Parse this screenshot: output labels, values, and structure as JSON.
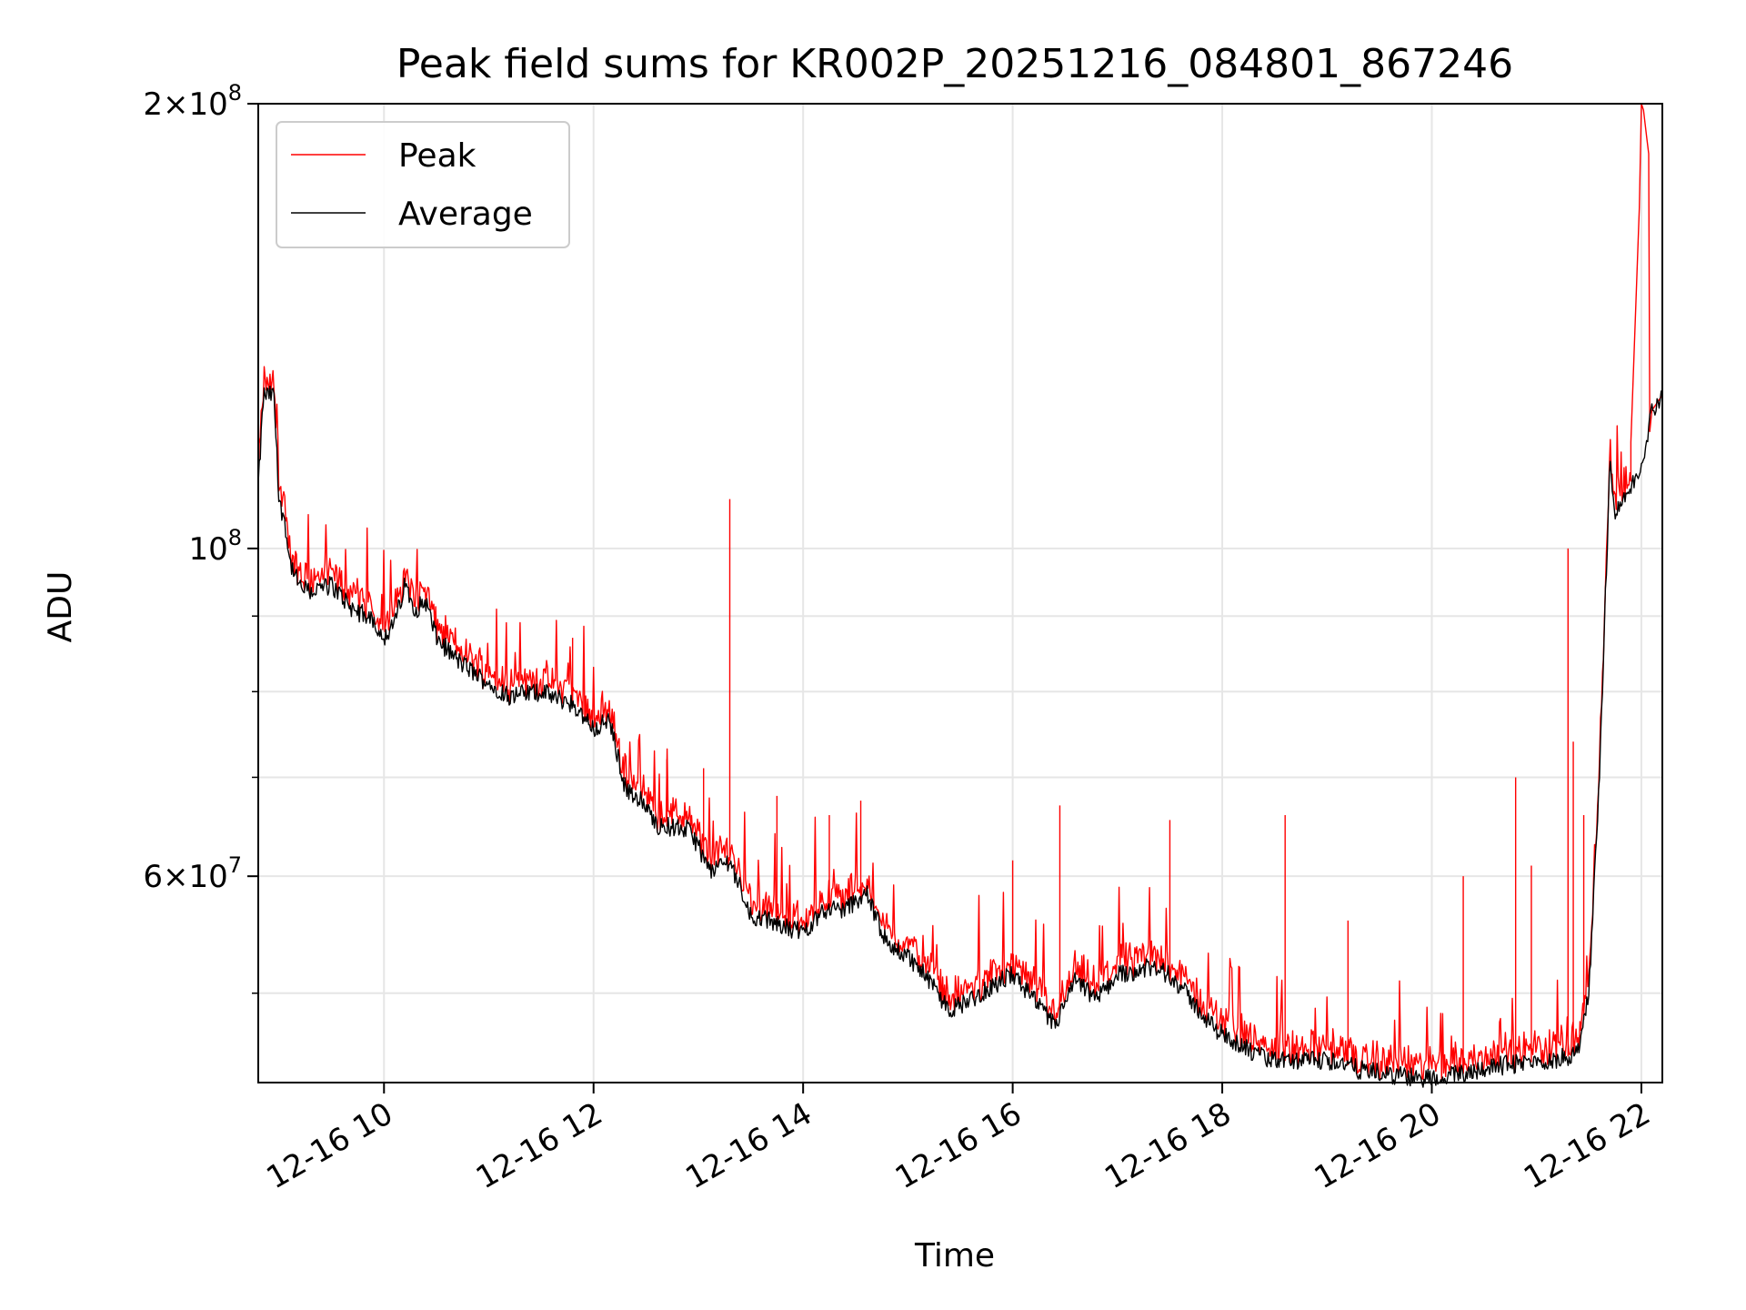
{
  "chart_data": {
    "type": "line",
    "title": "Peak field sums for KR002P_20251216_084801_867246",
    "xlabel": "Time",
    "ylabel": "ADU",
    "y_scale": "log",
    "xlim_hours": [
      8.8,
      22.2
    ],
    "ylim": [
      43500000,
      200000000
    ],
    "x_ticks": [
      {
        "value": 10,
        "label": "12-16 10"
      },
      {
        "value": 12,
        "label": "12-16 12"
      },
      {
        "value": 14,
        "label": "12-16 14"
      },
      {
        "value": 16,
        "label": "12-16 16"
      },
      {
        "value": 18,
        "label": "12-16 18"
      },
      {
        "value": 20,
        "label": "12-16 20"
      },
      {
        "value": 22,
        "label": "12-16 22"
      }
    ],
    "y_major_ticks": [
      {
        "value": 200000000,
        "base": "2×10",
        "exp": "8"
      },
      {
        "value": 100000000,
        "base": "10",
        "exp": "8"
      },
      {
        "value": 60000000,
        "base": "6×10",
        "exp": "7"
      }
    ],
    "y_minor_ticks": [
      50000000,
      70000000,
      80000000,
      90000000
    ],
    "grid": true,
    "legend": {
      "position": "top-left",
      "entries": [
        "Peak",
        "Average"
      ]
    },
    "series": [
      {
        "name": "Average",
        "color": "#000000",
        "x": [
          8.8,
          8.85,
          8.95,
          9.0,
          9.05,
          9.1,
          9.2,
          9.3,
          9.5,
          9.7,
          9.9,
          10.0,
          10.1,
          10.2,
          10.3,
          10.4,
          10.5,
          10.7,
          11.0,
          11.2,
          11.5,
          11.8,
          12.0,
          12.15,
          12.3,
          12.45,
          12.6,
          12.9,
          13.0,
          13.1,
          13.3,
          13.5,
          13.8,
          14.0,
          14.2,
          14.4,
          14.6,
          14.8,
          15.0,
          15.2,
          15.4,
          15.6,
          15.8,
          16.0,
          16.2,
          16.4,
          16.6,
          16.8,
          17.0,
          17.3,
          17.5,
          17.7,
          17.9,
          18.1,
          18.3,
          18.5,
          18.8,
          19.1,
          19.3,
          19.6,
          19.9,
          20.2,
          20.5,
          20.8,
          21.1,
          21.3,
          21.4,
          21.5,
          21.6,
          21.7,
          21.75,
          21.8,
          21.9,
          22.0,
          22.1,
          22.2
        ],
        "values": [
          110000000,
          127000000,
          127000000,
          107000000,
          105000000,
          98000000,
          94000000,
          93500000,
          94500000,
          91000000,
          89500000,
          87000000,
          89000000,
          94500000,
          91000000,
          92000000,
          87000000,
          84000000,
          81000000,
          79500000,
          80000000,
          78500000,
          75500000,
          76500000,
          69000000,
          67500000,
          65000000,
          64500000,
          63000000,
          60500000,
          61500000,
          56500000,
          55500000,
          55000000,
          57000000,
          57000000,
          58500000,
          54000000,
          53000000,
          51000000,
          48700000,
          49500000,
          50500000,
          51500000,
          49500000,
          47500000,
          51000000,
          49500000,
          51500000,
          52000000,
          51500000,
          49500000,
          47500000,
          46500000,
          45500000,
          45000000,
          45000000,
          45000000,
          44400000,
          44000000,
          43800000,
          44000000,
          44500000,
          44800000,
          45000000,
          45300000,
          46000000,
          50000000,
          70000000,
          115000000,
          105000000,
          107000000,
          110000000,
          114000000,
          124000000,
          127000000
        ]
      },
      {
        "name": "Peak",
        "color": "#ff0000",
        "spikes": [
          {
            "x": 13.3,
            "y": 108000000
          },
          {
            "x": 21.3,
            "y": 100000000
          },
          {
            "x": 21.35,
            "y": 74000000
          },
          {
            "x": 20.8,
            "y": 70000000
          },
          {
            "x": 14.25,
            "y": 66000000
          },
          {
            "x": 14.55,
            "y": 67500000
          },
          {
            "x": 16.45,
            "y": 67000000
          },
          {
            "x": 18.6,
            "y": 66000000
          },
          {
            "x": 17.5,
            "y": 65500000
          },
          {
            "x": 16.0,
            "y": 61500000
          },
          {
            "x": 13.75,
            "y": 68000000
          },
          {
            "x": 11.8,
            "y": 87000000
          },
          {
            "x": 19.2,
            "y": 56000000
          },
          {
            "x": 20.3,
            "y": 60000000
          },
          {
            "x": 20.95,
            "y": 61000000
          },
          {
            "x": 21.45,
            "y": 66000000
          },
          {
            "x": 12.7,
            "y": 72000000
          },
          {
            "x": 13.05,
            "y": 71000000
          }
        ],
        "end_segment": {
          "x": [
            21.9,
            21.98,
            22.0,
            22.02,
            22.05,
            22.07,
            22.08,
            22.1,
            22.2
          ],
          "values": [
            118000000,
            170000000,
            200000000,
            198000000,
            190000000,
            185000000,
            120000000,
            124000000,
            127000000
          ]
        }
      }
    ]
  }
}
